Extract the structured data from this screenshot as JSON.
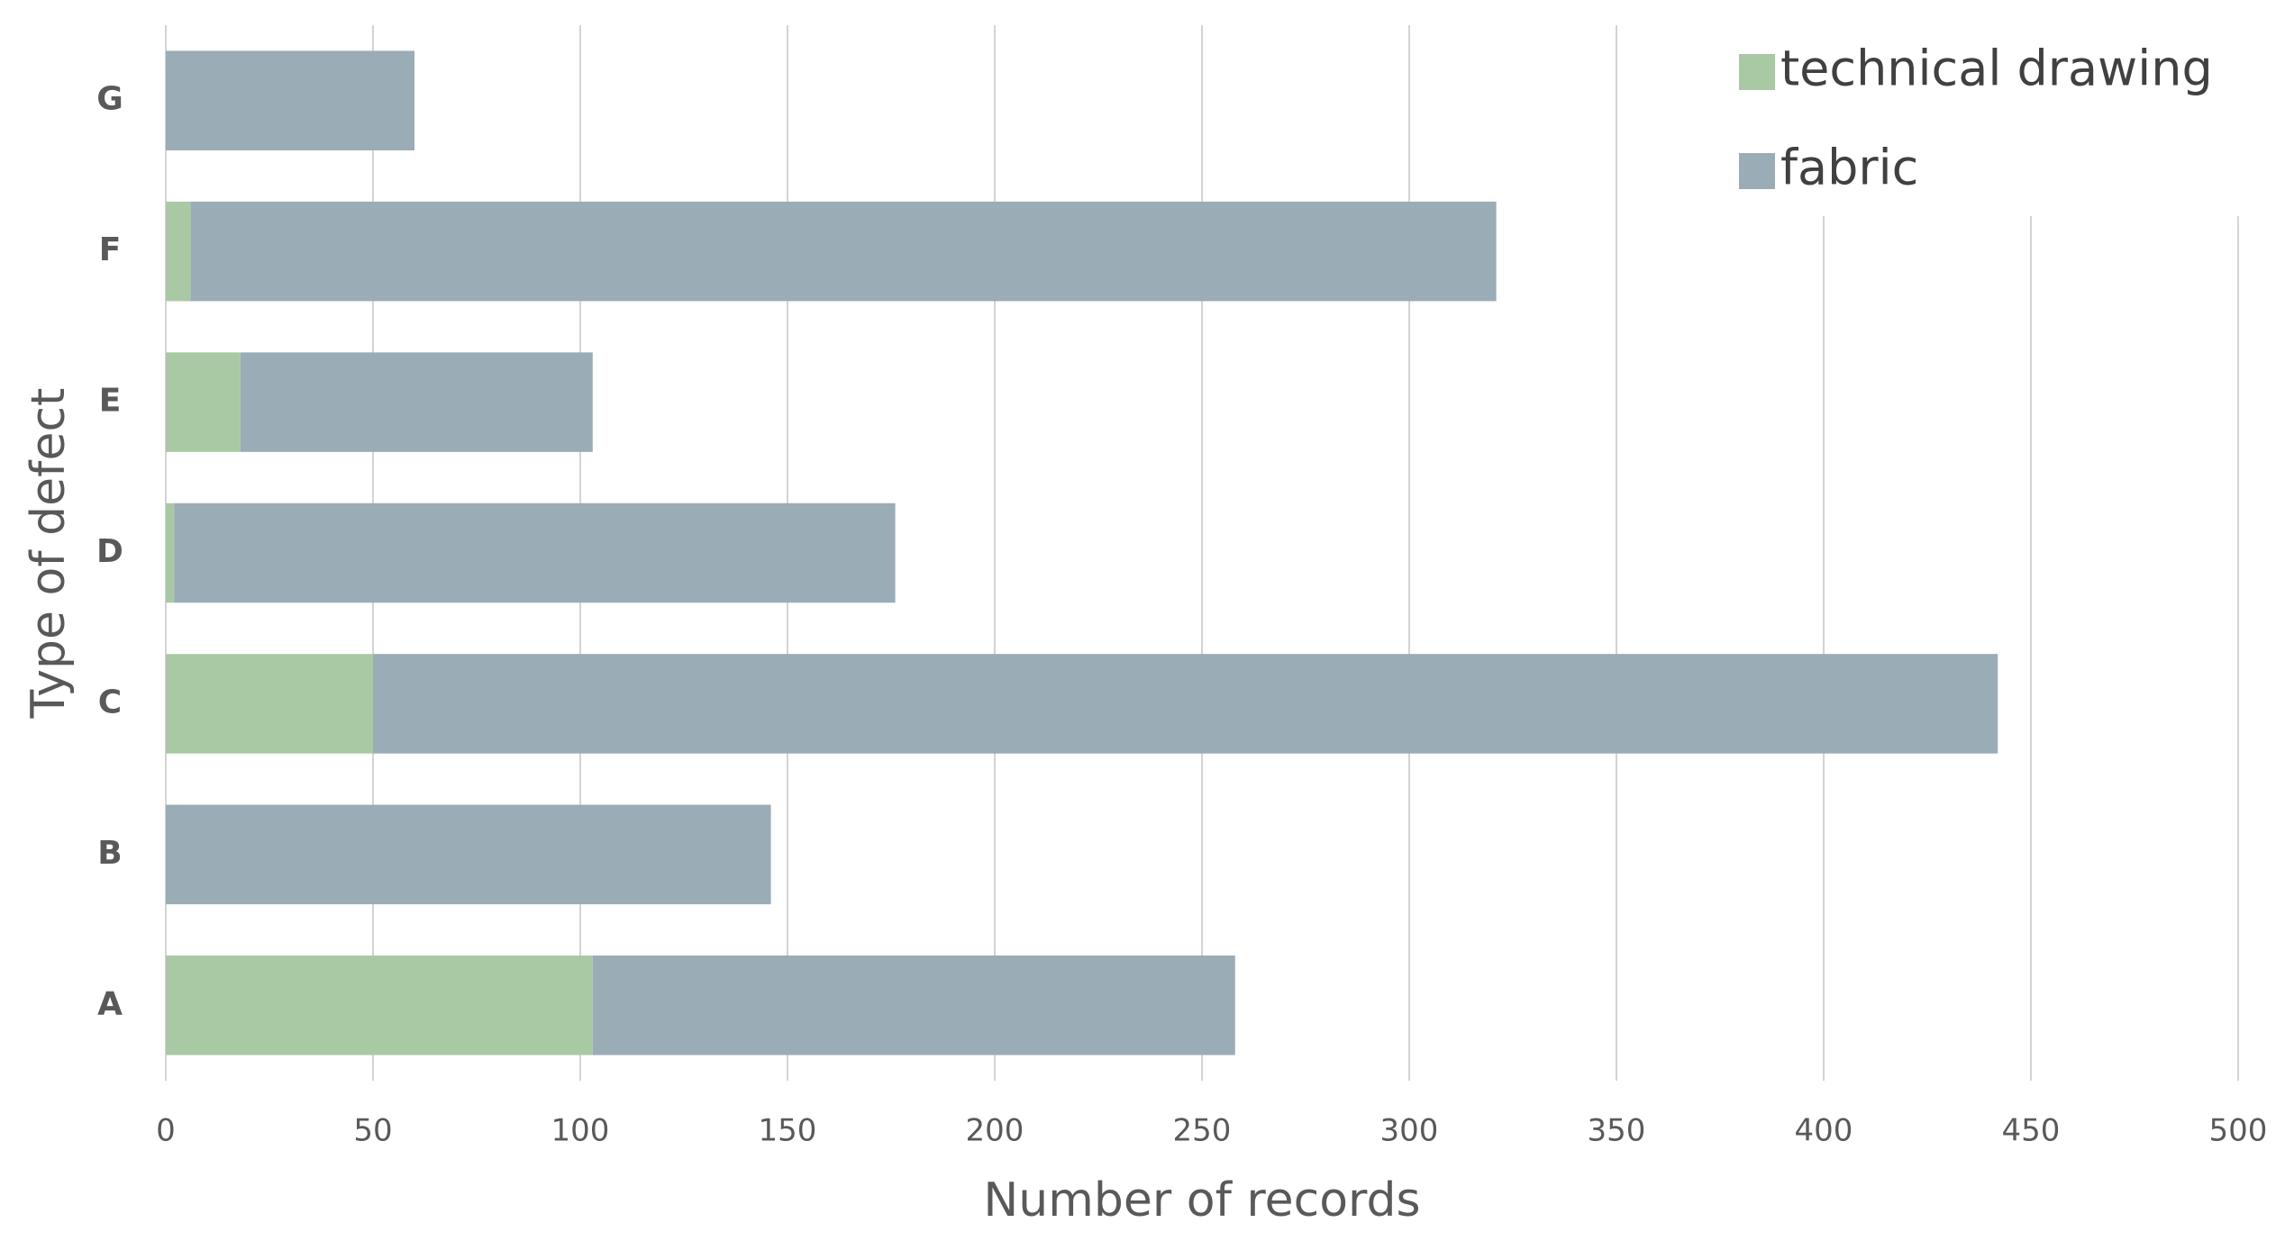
{
  "chart_data": {
    "type": "stacked_bar",
    "orientation": "horizontal",
    "x_label": "Number of records",
    "y_label": "Type of defect",
    "categories": [
      "A",
      "B",
      "C",
      "D",
      "E",
      "F",
      "G"
    ],
    "series": [
      {
        "name": "technical drawing",
        "color": "#a9c9a4",
        "values": [
          103,
          0,
          50,
          2,
          18,
          6,
          0
        ]
      },
      {
        "name": "fabric",
        "color": "#9aacb6",
        "values": [
          155,
          146,
          392,
          174,
          85,
          315,
          60
        ]
      }
    ],
    "xlim": [
      0,
      500
    ],
    "xticks": [
      0,
      50,
      100,
      150,
      200,
      250,
      300,
      350,
      400,
      450,
      500
    ],
    "grid": true,
    "legend": "top-right"
  }
}
